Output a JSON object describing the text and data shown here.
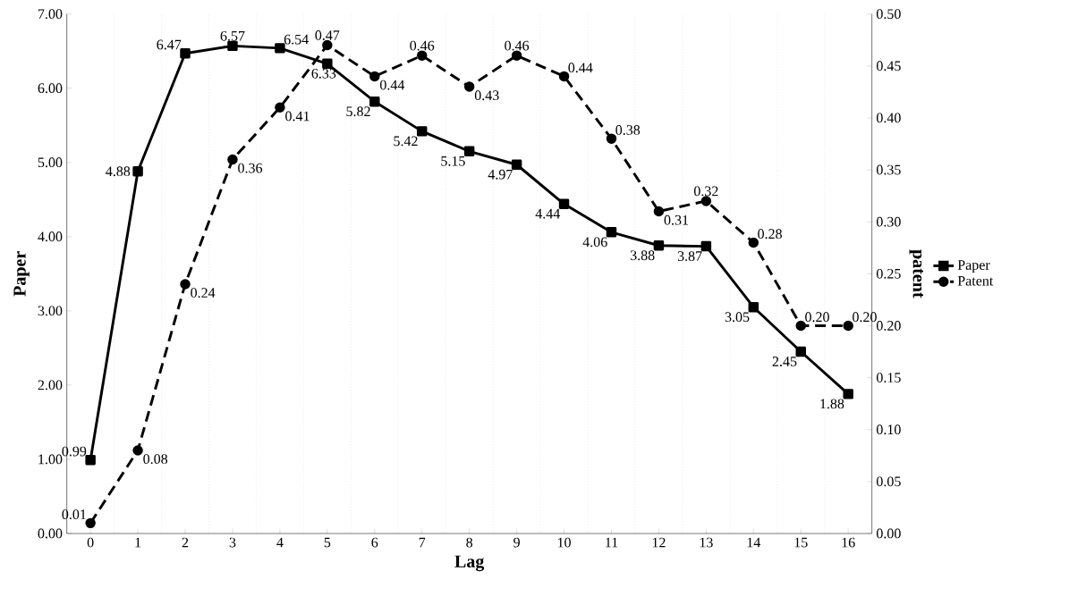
{
  "chart_data": {
    "type": "line",
    "xlabel": "Lag",
    "ylabel": "Paper",
    "y2label": "patent",
    "categories": [
      "0",
      "1",
      "2",
      "3",
      "4",
      "5",
      "6",
      "7",
      "8",
      "9",
      "10",
      "11",
      "12",
      "13",
      "14",
      "15",
      "16"
    ],
    "series": [
      {
        "name": "Paper",
        "color": "#000000",
        "marker": "square",
        "line_style": "solid",
        "values": [
          0.99,
          4.88,
          6.47,
          6.57,
          6.54,
          6.33,
          5.82,
          5.42,
          5.15,
          4.97,
          4.44,
          4.06,
          3.88,
          3.87,
          3.05,
          2.45,
          1.88
        ],
        "value_labels": [
          "0.99",
          "4.88",
          "6.47",
          "6.57",
          "6.54",
          "6.33",
          "5.82",
          "5.42",
          "5.15",
          "4.97",
          "4.44",
          "4.06",
          "3.88",
          "3.87",
          "3.05",
          "2.45",
          "1.88"
        ]
      },
      {
        "name": "Patent",
        "color": "#000000",
        "marker": "circle",
        "line_style": "dashed",
        "axis": "y2",
        "values": [
          0.01,
          0.08,
          0.24,
          0.36,
          0.41,
          0.47,
          0.44,
          0.46,
          0.43,
          0.46,
          0.44,
          0.38,
          0.31,
          0.32,
          0.28,
          0.2,
          0.2
        ],
        "value_labels": [
          "0.01",
          "0.08",
          "0.24",
          "0.36",
          "0.41",
          "0.47",
          "0.44",
          "0.46",
          "0.43",
          "0.46",
          "0.44",
          "0.38",
          "0.31",
          "0.32",
          "0.28",
          "0.20",
          "0.20"
        ]
      }
    ],
    "ylim": [
      0,
      7
    ],
    "yticks": [
      {
        "value": 0,
        "label": "0.00"
      },
      {
        "value": 1,
        "label": "1.00"
      },
      {
        "value": 2,
        "label": "2.00"
      },
      {
        "value": 3,
        "label": "3.00"
      },
      {
        "value": 4,
        "label": "4.00"
      },
      {
        "value": 5,
        "label": "5.00"
      },
      {
        "value": 6,
        "label": "6.00"
      },
      {
        "value": 7,
        "label": "7.00"
      }
    ],
    "y2lim": [
      0,
      0.5
    ],
    "y2ticks": [
      {
        "value": 0,
        "label": "0.00"
      },
      {
        "value": 0.05,
        "label": "0.05"
      },
      {
        "value": 0.1,
        "label": "0.10"
      },
      {
        "value": 0.15,
        "label": "0.15"
      },
      {
        "value": 0.2,
        "label": "0.20"
      },
      {
        "value": 0.25,
        "label": "0.25"
      },
      {
        "value": 0.3,
        "label": "0.30"
      },
      {
        "value": 0.35,
        "label": "0.35"
      },
      {
        "value": 0.4,
        "label": "0.40"
      },
      {
        "value": 0.45,
        "label": "0.45"
      },
      {
        "value": 0.5,
        "label": "0.50"
      }
    ],
    "grid": "x",
    "legend": "right"
  }
}
